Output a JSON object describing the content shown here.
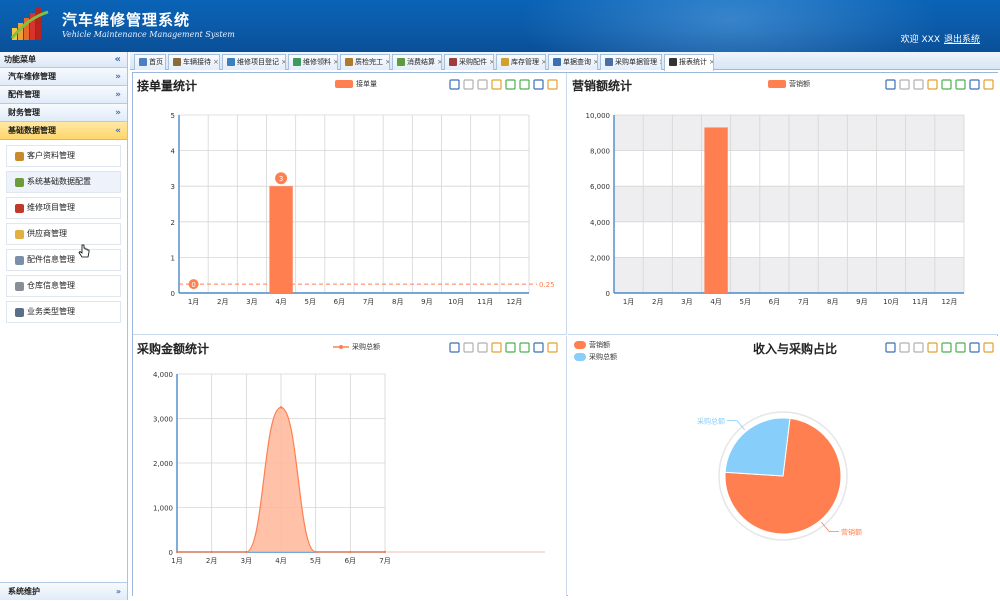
{
  "app": {
    "title": "汽车维修管理系统",
    "subtitle": "Vehicle Maintenance Management System",
    "welcome": "欢迎 XXX",
    "logout": "退出系统"
  },
  "sidebar": {
    "header": "功能菜单",
    "collapse_glyph": "«",
    "sections": [
      {
        "label": "汽车维修管理",
        "glyph": "»"
      },
      {
        "label": "配件管理",
        "glyph": "»"
      },
      {
        "label": "财务管理",
        "glyph": "»"
      },
      {
        "label": "基础数据管理",
        "glyph": "«"
      }
    ],
    "items": [
      {
        "label": "客户资料管理",
        "color": "#c98a2e"
      },
      {
        "label": "系统基础数据配置",
        "color": "#6e9b3c"
      },
      {
        "label": "维修项目管理",
        "color": "#c0392b"
      },
      {
        "label": "供应商管理",
        "color": "#e0b040"
      },
      {
        "label": "配件信息管理",
        "color": "#7b8fa8"
      },
      {
        "label": "仓库信息管理",
        "color": "#8a8f96"
      },
      {
        "label": "业务类型管理",
        "color": "#5a6f8a"
      }
    ],
    "bottom": {
      "label": "系统维护",
      "glyph": "»"
    }
  },
  "tabs": [
    {
      "label": "首页",
      "icon_color": "#4a7fc0"
    },
    {
      "label": "车辆接待",
      "icon_color": "#8a6a3c"
    },
    {
      "label": "维修项目登记",
      "icon_color": "#3c7fc0"
    },
    {
      "label": "维修领料",
      "icon_color": "#3c9a5c"
    },
    {
      "label": "质检完工",
      "icon_color": "#b07a2c"
    },
    {
      "label": "消费结算",
      "icon_color": "#5c9c3c"
    },
    {
      "label": "采购配件",
      "icon_color": "#a03c3c"
    },
    {
      "label": "库存管理",
      "icon_color": "#d0a030"
    },
    {
      "label": "单据查询",
      "icon_color": "#3c6fb0"
    },
    {
      "label": "采购单据管理",
      "icon_color": "#4a6fa0"
    },
    {
      "label": "报表统计",
      "icon_color": "#333333"
    }
  ],
  "tab_close": "×",
  "toolbox_icons": [
    "mark-icon",
    "erase-icon",
    "restore-icon",
    "data-view-icon",
    "line-chart-icon",
    "bar-chart-icon",
    "refresh-icon",
    "save-image-icon"
  ],
  "chart_data": [
    {
      "type": "bar",
      "title": "接单量统计",
      "legend": [
        "接单量"
      ],
      "color": "#ff7f50",
      "categories": [
        "1月",
        "2月",
        "3月",
        "4月",
        "5月",
        "6月",
        "7月",
        "8月",
        "9月",
        "10月",
        "11月",
        "12月"
      ],
      "values": [
        0,
        0,
        0,
        3,
        0,
        0,
        0,
        0,
        0,
        0,
        0,
        0
      ],
      "ylim": [
        0,
        5
      ],
      "yticks": [
        "0",
        "1",
        "2",
        "3",
        "4",
        "5"
      ],
      "markpoint": {
        "value": "3",
        "category": "4月"
      },
      "markpoint_min": {
        "value": "0",
        "category": "1月"
      },
      "markline": {
        "label": "0.25",
        "value": 0.25
      },
      "grid": true
    },
    {
      "type": "bar",
      "title": "营销额统计",
      "legend": [
        "营销额"
      ],
      "color": "#ff7f50",
      "categories": [
        "1月",
        "2月",
        "3月",
        "4月",
        "5月",
        "6月",
        "7月",
        "8月",
        "9月",
        "10月",
        "11月",
        "12月"
      ],
      "values": [
        0,
        0,
        0,
        9300,
        0,
        0,
        0,
        0,
        0,
        0,
        0,
        0
      ],
      "ylim": [
        0,
        10000
      ],
      "yticks": [
        "0",
        "2,000",
        "4,000",
        "6,000",
        "8,000",
        "10,000"
      ],
      "grid": true,
      "banded_background": true
    },
    {
      "type": "area",
      "title": "采购金额统计",
      "legend": [
        "采购总额"
      ],
      "color": "#ff7f50",
      "categories": [
        "1月",
        "2月",
        "3月",
        "4月",
        "5月",
        "6月",
        "7月"
      ],
      "values": [
        0,
        0,
        0,
        3250,
        0,
        0,
        0
      ],
      "ylim": [
        0,
        4000
      ],
      "yticks": [
        "0",
        "1,000",
        "2,000",
        "3,000",
        "4,000"
      ],
      "grid": true
    },
    {
      "type": "pie",
      "title": "收入与采购占比",
      "legend": [
        "营销额",
        "采购总额"
      ],
      "slices": [
        {
          "name": "营销额",
          "value": 9300,
          "color": "#ff7f50"
        },
        {
          "name": "采购总额",
          "value": 3250,
          "color": "#87cefa"
        }
      ]
    }
  ]
}
